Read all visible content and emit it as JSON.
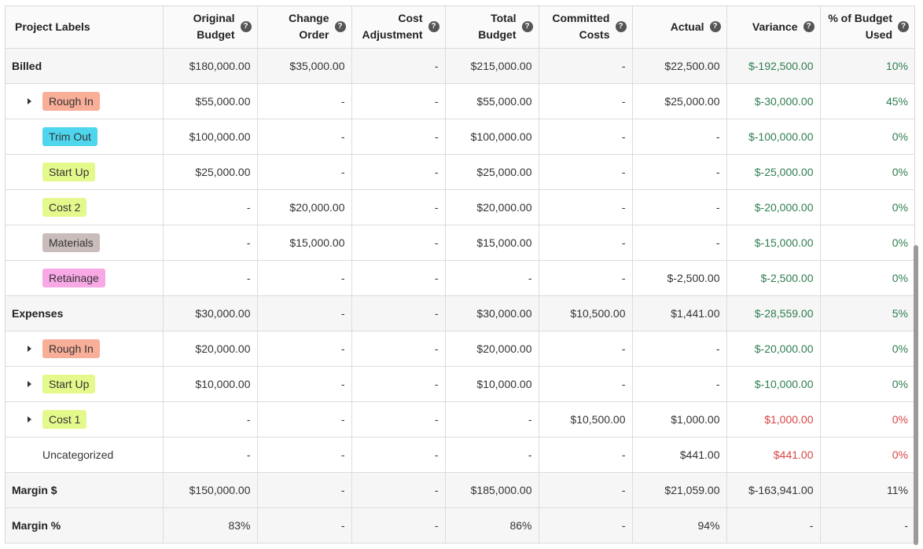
{
  "colors": {
    "positive": "#2e7d4f",
    "negative": "#d94444",
    "tag_rough_in": "#f9ae98",
    "tag_trim_out": "#4fd6ef",
    "tag_start_up": "#e4f98c",
    "tag_cost": "#e4f98c",
    "tag_materials": "#c9bdbb",
    "tag_retainage": "#f9a8e6"
  },
  "columns": [
    {
      "label": "Project Labels",
      "help": false
    },
    {
      "label": "Original Budget",
      "help": true
    },
    {
      "label": "Change Order",
      "help": true
    },
    {
      "label": "Cost Adjustment",
      "help": true
    },
    {
      "label": "Total Budget",
      "help": true
    },
    {
      "label": "Committed Costs",
      "help": true
    },
    {
      "label": "Actual",
      "help": true
    },
    {
      "label": "Variance",
      "help": true
    },
    {
      "label": "% of Budget Used",
      "help": true
    }
  ],
  "help_icon": "question-circle-icon",
  "rows": [
    {
      "type": "group",
      "label": "Billed",
      "cells": [
        "$180,000.00",
        "$35,000.00",
        "-",
        "$215,000.00",
        "-",
        "$22,500.00",
        "$-192,500.00",
        "10%"
      ],
      "variance_tone": "green",
      "pct_tone": "green"
    },
    {
      "type": "tag",
      "expandable": true,
      "label": "Rough In",
      "color": "#f9ae98",
      "cells": [
        "$55,000.00",
        "-",
        "-",
        "$55,000.00",
        "-",
        "$25,000.00",
        "$-30,000.00",
        "45%"
      ],
      "variance_tone": "green",
      "pct_tone": "green"
    },
    {
      "type": "tag",
      "expandable": false,
      "label": "Trim Out",
      "color": "#4fd6ef",
      "cells": [
        "$100,000.00",
        "-",
        "-",
        "$100,000.00",
        "-",
        "-",
        "$-100,000.00",
        "0%"
      ],
      "variance_tone": "green",
      "pct_tone": "green"
    },
    {
      "type": "tag",
      "expandable": false,
      "label": "Start Up",
      "color": "#e4f98c",
      "cells": [
        "$25,000.00",
        "-",
        "-",
        "$25,000.00",
        "-",
        "-",
        "$-25,000.00",
        "0%"
      ],
      "variance_tone": "green",
      "pct_tone": "green"
    },
    {
      "type": "tag",
      "expandable": false,
      "label": "Cost 2",
      "color": "#e4f98c",
      "cells": [
        "-",
        "$20,000.00",
        "-",
        "$20,000.00",
        "-",
        "-",
        "$-20,000.00",
        "0%"
      ],
      "variance_tone": "green",
      "pct_tone": "green"
    },
    {
      "type": "tag",
      "expandable": false,
      "label": "Materials",
      "color": "#c9bdbb",
      "cells": [
        "-",
        "$15,000.00",
        "-",
        "$15,000.00",
        "-",
        "-",
        "$-15,000.00",
        "0%"
      ],
      "variance_tone": "green",
      "pct_tone": "green"
    },
    {
      "type": "tag",
      "expandable": false,
      "label": "Retainage",
      "color": "#f9a8e6",
      "cells": [
        "-",
        "-",
        "-",
        "-",
        "-",
        "$-2,500.00",
        "$-2,500.00",
        "0%"
      ],
      "variance_tone": "green",
      "pct_tone": "green"
    },
    {
      "type": "group",
      "label": "Expenses",
      "cells": [
        "$30,000.00",
        "-",
        "-",
        "$30,000.00",
        "$10,500.00",
        "$1,441.00",
        "$-28,559.00",
        "5%"
      ],
      "variance_tone": "green",
      "pct_tone": "green"
    },
    {
      "type": "tag",
      "expandable": true,
      "label": "Rough In",
      "color": "#f9ae98",
      "cells": [
        "$20,000.00",
        "-",
        "-",
        "$20,000.00",
        "-",
        "-",
        "$-20,000.00",
        "0%"
      ],
      "variance_tone": "green",
      "pct_tone": "green"
    },
    {
      "type": "tag",
      "expandable": true,
      "label": "Start Up",
      "color": "#e4f98c",
      "cells": [
        "$10,000.00",
        "-",
        "-",
        "$10,000.00",
        "-",
        "-",
        "$-10,000.00",
        "0%"
      ],
      "variance_tone": "green",
      "pct_tone": "green"
    },
    {
      "type": "tag",
      "expandable": true,
      "label": "Cost 1",
      "color": "#e4f98c",
      "cells": [
        "-",
        "-",
        "-",
        "-",
        "$10,500.00",
        "$1,000.00",
        "$1,000.00",
        "0%"
      ],
      "variance_tone": "red",
      "pct_tone": "red"
    },
    {
      "type": "plain",
      "expandable": false,
      "label": "Uncategorized",
      "cells": [
        "-",
        "-",
        "-",
        "-",
        "-",
        "$441.00",
        "$441.00",
        "0%"
      ],
      "variance_tone": "red",
      "pct_tone": "red"
    },
    {
      "type": "group",
      "label": "Margin $",
      "cells": [
        "$150,000.00",
        "-",
        "-",
        "$185,000.00",
        "-",
        "$21,059.00",
        "$-163,941.00",
        "11%"
      ],
      "variance_tone": "",
      "pct_tone": ""
    },
    {
      "type": "group",
      "label": "Margin %",
      "cells": [
        "83%",
        "-",
        "-",
        "86%",
        "-",
        "94%",
        "-",
        "-"
      ],
      "variance_tone": "",
      "pct_tone": ""
    }
  ]
}
